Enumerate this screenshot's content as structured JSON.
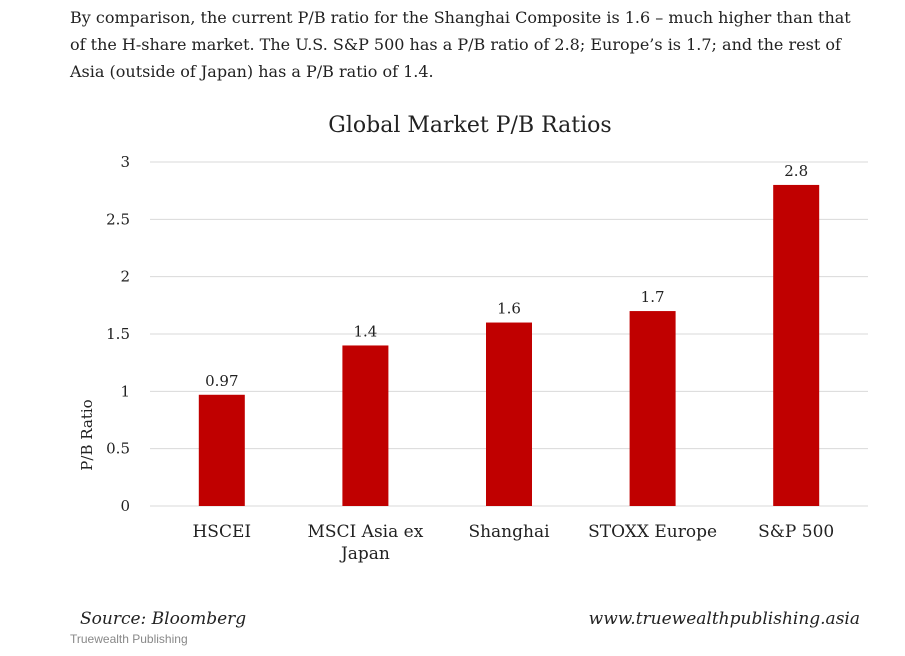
{
  "article": {
    "paragraph": "By comparison, the current P/B ratio for the Shanghai Composite is 1.6 – much higher than that of the H-share market. The U.S. S&P 500 has a P/B ratio of 2.8; Europe’s is 1.7; and the rest of Asia (outside of Japan) has a P/B ratio of 1.4."
  },
  "chart_data": {
    "type": "bar",
    "title": "Global Market P/B Ratios",
    "categories": [
      "HSCEI",
      "MSCI Asia ex Japan",
      "Shanghai",
      "STOXX Europe",
      "S&P 500"
    ],
    "category_lines": [
      [
        "HSCEI"
      ],
      [
        "MSCI Asia ex",
        "Japan"
      ],
      [
        "Shanghai"
      ],
      [
        "STOXX Europe"
      ],
      [
        "S&P 500"
      ]
    ],
    "values": [
      0.97,
      1.4,
      1.6,
      1.7,
      2.8
    ],
    "data_labels": [
      "0.97",
      "1.4",
      "1.6",
      "1.7",
      "2.8"
    ],
    "ylabel": "P/B Ratio",
    "xlabel": "",
    "ylim": [
      0,
      3
    ],
    "yticks": [
      0,
      0.5,
      1,
      1.5,
      2,
      2.5,
      3
    ],
    "ytick_labels": [
      "0",
      "0.5",
      "1",
      "1.5",
      "2",
      "2.5",
      "3"
    ],
    "grid": true,
    "bar_color": "#c00000",
    "source": "Source: Bloomberg",
    "website": "www.truewealthpublishing.asia"
  },
  "image_caption": "Truewealth Publishing"
}
